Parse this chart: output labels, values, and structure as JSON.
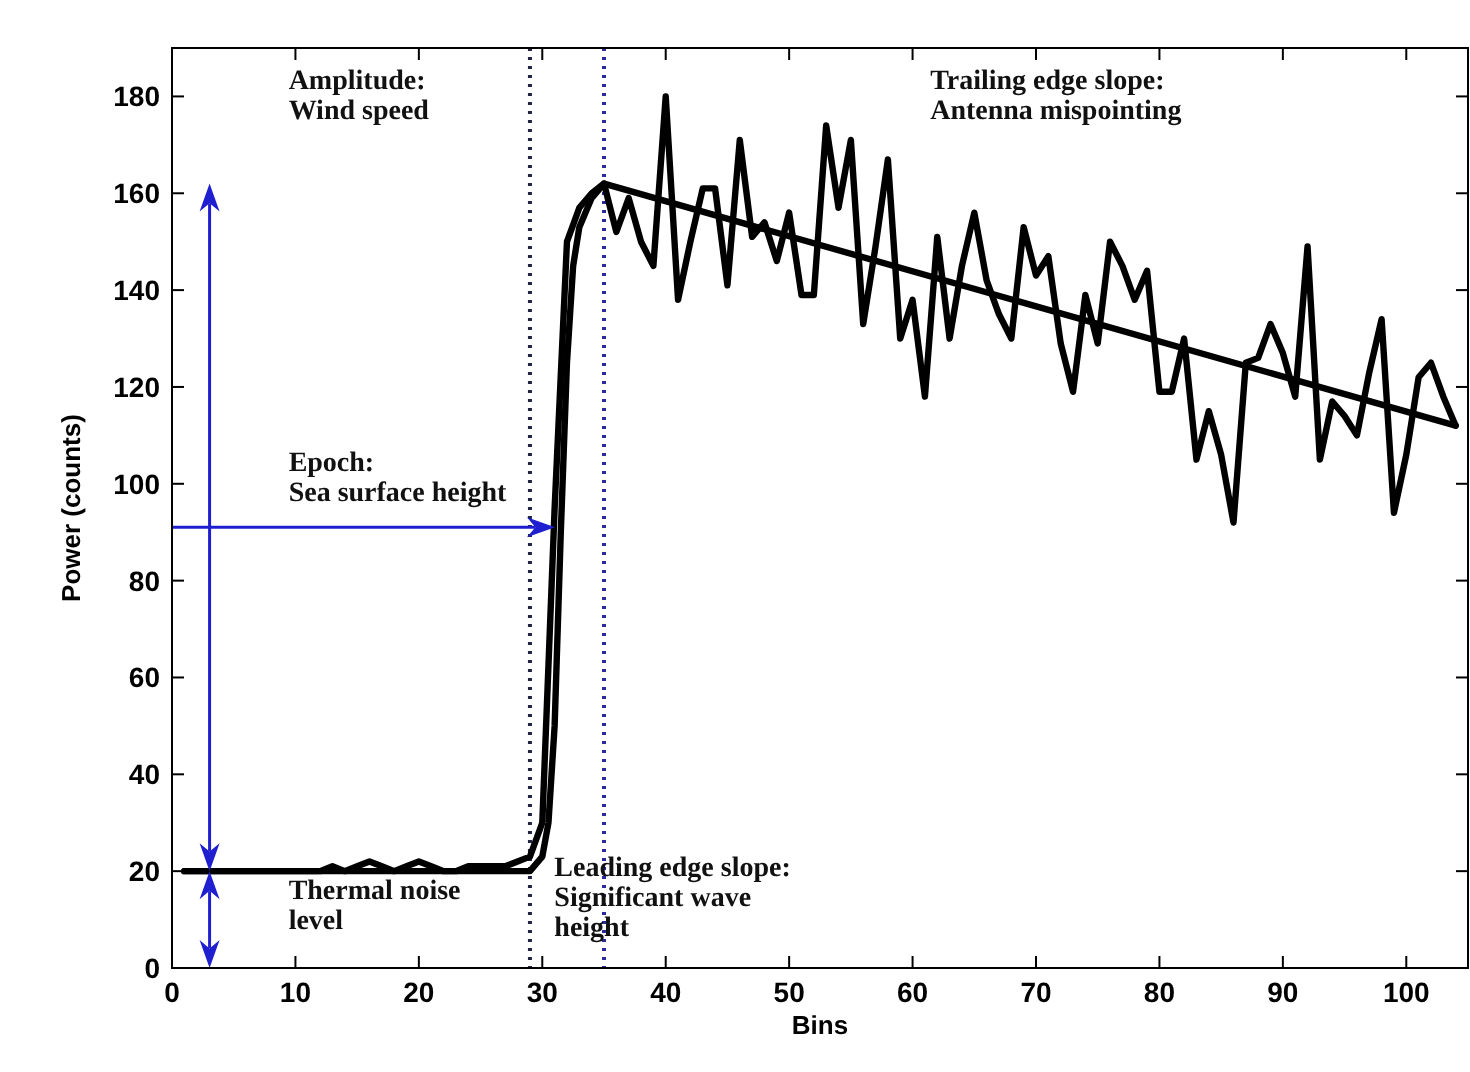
{
  "chart_data": {
    "type": "line",
    "xlabel": "Bins",
    "ylabel": "Power (counts)",
    "xlim": [
      0,
      105
    ],
    "ylim": [
      0,
      190
    ],
    "xticks": [
      0,
      10,
      20,
      30,
      40,
      50,
      60,
      70,
      80,
      90,
      100
    ],
    "yticks": [
      0,
      20,
      40,
      60,
      80,
      100,
      120,
      140,
      160,
      180
    ],
    "grid": false,
    "marker": "none",
    "line_style": "solid",
    "series": [
      {
        "color": "#000000",
        "x": [
          1,
          2,
          3,
          4,
          5,
          6,
          7,
          8,
          9,
          10,
          11,
          12,
          13,
          14,
          15,
          16,
          17,
          18,
          19,
          20,
          21,
          22,
          23,
          24,
          25,
          26,
          27,
          28,
          29,
          30,
          31,
          32,
          33,
          34,
          35,
          36,
          37,
          38,
          39,
          40,
          41,
          42,
          43,
          44,
          45,
          46,
          47,
          48,
          49,
          50,
          51,
          52,
          53,
          54,
          55,
          56,
          57,
          58,
          59,
          60,
          61,
          62,
          63,
          64,
          65,
          66,
          67,
          68,
          69,
          70,
          71,
          72,
          73,
          74,
          75,
          76,
          77,
          78,
          79,
          80,
          81,
          82,
          83,
          84,
          85,
          86,
          87,
          88,
          89,
          90,
          91,
          92,
          93,
          94,
          95,
          96,
          97,
          98,
          99,
          100,
          101,
          102,
          103,
          104
        ],
        "values": [
          20,
          20,
          20,
          20,
          20,
          20,
          20,
          20,
          20,
          20,
          20,
          20,
          21,
          20,
          21,
          22,
          21,
          20,
          21,
          22,
          21,
          20,
          20,
          21,
          21,
          21,
          21,
          22,
          23,
          30,
          95,
          150,
          157,
          160,
          162,
          152,
          159,
          150,
          145,
          180,
          138,
          150,
          161,
          161,
          141,
          171,
          151,
          154,
          146,
          156,
          139,
          139,
          174,
          157,
          171,
          133,
          149,
          167,
          130,
          138,
          118,
          151,
          130,
          145,
          156,
          142,
          135,
          130,
          153,
          143,
          147,
          129,
          119,
          139,
          129,
          150,
          145,
          138,
          144,
          119,
          119,
          130,
          105,
          115,
          106,
          92,
          125,
          126,
          133,
          127,
          118,
          149,
          105,
          117,
          114,
          110,
          123,
          134,
          94,
          106,
          122,
          125,
          118,
          112
        ]
      },
      {
        "color": "#000000",
        "x": [
          1,
          29,
          30,
          30.5,
          31,
          31.5,
          32,
          32.5,
          33,
          34,
          35,
          104
        ],
        "values": [
          20,
          20,
          23,
          30,
          50,
          90,
          125,
          145,
          153,
          159,
          162,
          112
        ]
      }
    ],
    "ref_lines": [
      {
        "axis": "x",
        "value": 29,
        "color": "#222244",
        "line_style": "dotted"
      },
      {
        "axis": "x",
        "value": 35,
        "color": "#2a2a9a",
        "line_style": "dotted"
      }
    ],
    "annotations": [
      "Amplitude:\nWind speed",
      "Epoch:\nSea surface height",
      "Trailing edge slope:\nAntenna mispointing",
      "Leading edge slope:\nSignificant wave\nheight",
      "Thermal noise\nlevel"
    ]
  }
}
